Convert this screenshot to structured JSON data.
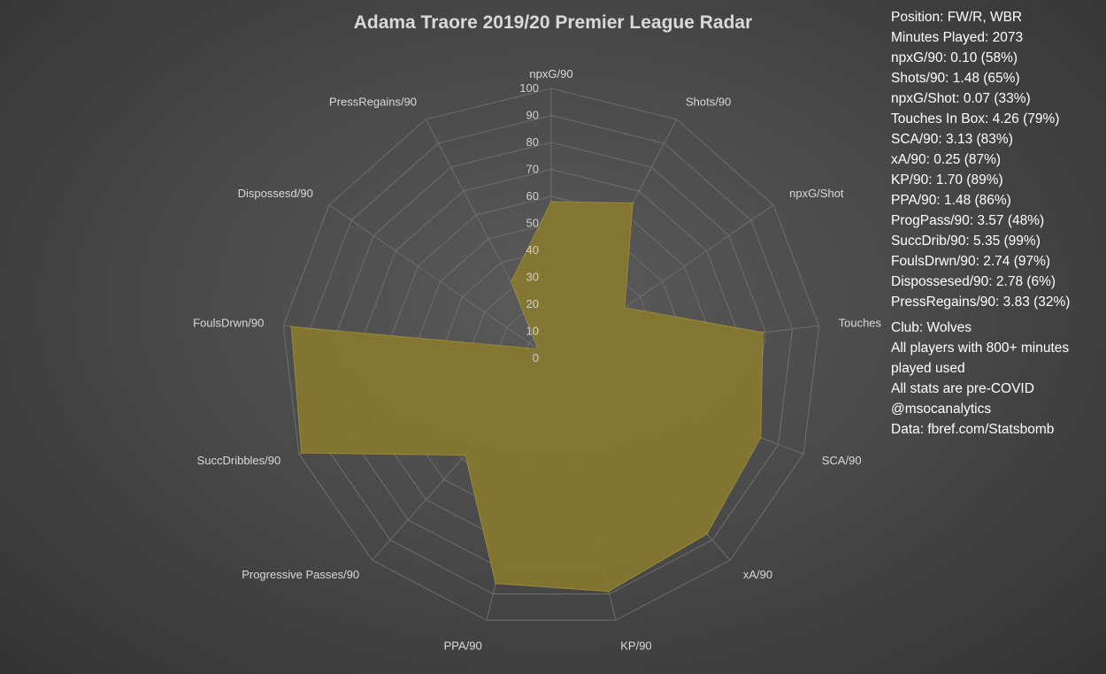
{
  "chart_data": {
    "type": "radar",
    "title": "Adama Traore 2019/20 Premier League Radar",
    "axes": [
      "npxG/90",
      "Shots/90",
      "npxG/Shot",
      "Touches In Box",
      "SCA/90",
      "xA/90",
      "KP/90",
      "PPA/90",
      "Progressive Passes/90",
      "SuccDribbles/90",
      "FoulsDrwn/90",
      "Dispossesd/90",
      "PressRegains/90"
    ],
    "series": [
      {
        "values": [
          58,
          65,
          33,
          79,
          83,
          87,
          89,
          86,
          48,
          99,
          97,
          6,
          32
        ]
      }
    ],
    "rlim": [
      0,
      100
    ],
    "ticks": [
      "0",
      "10",
      "20",
      "30",
      "40",
      "50",
      "60",
      "70",
      "80",
      "90",
      "100"
    ],
    "series_color": "#8a7a2e",
    "grid": true
  },
  "info": {
    "stats": [
      "Position: FW/R, WBR",
      "Minutes Played: 2073",
      "npxG/90: 0.10 (58%)",
      "Shots/90: 1.48 (65%)",
      "npxG/Shot: 0.07 (33%)",
      "Touches In Box: 4.26 (79%)",
      "SCA/90: 3.13 (83%)",
      "xA/90: 0.25 (87%)",
      "KP/90: 1.70 (89%)",
      "PPA/90: 1.48 (86%)",
      "ProgPass/90: 3.57 (48%)",
      "SuccDrib/90: 5.35 (99%)",
      "FoulsDrwn/90: 2.74 (97%)",
      "Dispossesed/90: 2.78 (6%)",
      "PressRegains/90: 3.83 (32%)"
    ],
    "notes": [
      "Club: Wolves",
      "All players with 800+ minutes",
      "played used",
      "All stats are pre-COVID",
      "@msocanalytics",
      "Data: fbref.com/Statsbomb"
    ]
  }
}
